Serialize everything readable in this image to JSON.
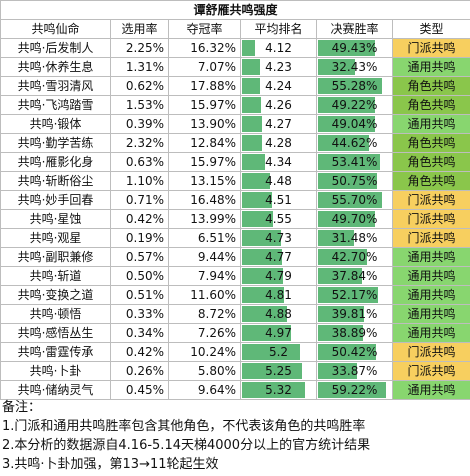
{
  "title": "谭舒雁共鸣强度",
  "headers": [
    "共鸣仙命",
    "选用率",
    "夺冠率",
    "平均排名",
    "决赛胜率",
    "类型"
  ],
  "colors": {
    "门派共鸣": "#f7cf5f",
    "通用共鸣": "#88d66f",
    "角色共鸣": "#8ac64b",
    "bar": "#5fb878"
  },
  "rows": [
    {
      "name": "共鸣·后发制人",
      "pick": "2.25%",
      "win": "16.32%",
      "rank": "4.12",
      "final": "49.43%",
      "type": "门派共鸣"
    },
    {
      "name": "共鸣·休养生息",
      "pick": "1.31%",
      "win": "7.07%",
      "rank": "4.23",
      "final": "32.43%",
      "type": "通用共鸣"
    },
    {
      "name": "共鸣·雪羽清风",
      "pick": "0.62%",
      "win": "17.88%",
      "rank": "4.24",
      "final": "55.28%",
      "type": "角色共鸣"
    },
    {
      "name": "共鸣·飞鸿踏雪",
      "pick": "1.53%",
      "win": "15.97%",
      "rank": "4.26",
      "final": "49.22%",
      "type": "角色共鸣"
    },
    {
      "name": "共鸣·锻体",
      "pick": "0.39%",
      "win": "13.90%",
      "rank": "4.27",
      "final": "49.04%",
      "type": "通用共鸣"
    },
    {
      "name": "共鸣·勤学苦练",
      "pick": "2.32%",
      "win": "12.84%",
      "rank": "4.28",
      "final": "44.62%",
      "type": "角色共鸣"
    },
    {
      "name": "共鸣·雁影化身",
      "pick": "0.63%",
      "win": "15.97%",
      "rank": "4.34",
      "final": "53.41%",
      "type": "角色共鸣"
    },
    {
      "name": "共鸣·斩断俗尘",
      "pick": "1.10%",
      "win": "13.15%",
      "rank": "4.48",
      "final": "50.75%",
      "type": "角色共鸣"
    },
    {
      "name": "共鸣·妙手回春",
      "pick": "0.71%",
      "win": "16.48%",
      "rank": "4.51",
      "final": "55.70%",
      "type": "门派共鸣"
    },
    {
      "name": "共鸣·星蚀",
      "pick": "0.42%",
      "win": "13.99%",
      "rank": "4.55",
      "final": "49.70%",
      "type": "门派共鸣"
    },
    {
      "name": "共鸣·观星",
      "pick": "0.19%",
      "win": "6.51%",
      "rank": "4.73",
      "final": "31.48%",
      "type": "门派共鸣"
    },
    {
      "name": "共鸣·副职兼修",
      "pick": "0.57%",
      "win": "9.44%",
      "rank": "4.77",
      "final": "42.70%",
      "type": "通用共鸣"
    },
    {
      "name": "共鸣·斩道",
      "pick": "0.50%",
      "win": "7.94%",
      "rank": "4.79",
      "final": "37.84%",
      "type": "通用共鸣"
    },
    {
      "name": "共鸣·变换之道",
      "pick": "0.51%",
      "win": "11.60%",
      "rank": "4.81",
      "final": "52.17%",
      "type": "通用共鸣"
    },
    {
      "name": "共鸣·顿悟",
      "pick": "0.33%",
      "win": "8.72%",
      "rank": "4.88",
      "final": "39.81%",
      "type": "通用共鸣"
    },
    {
      "name": "共鸣·感悟丛生",
      "pick": "0.34%",
      "win": "7.26%",
      "rank": "4.97",
      "final": "38.89%",
      "type": "通用共鸣"
    },
    {
      "name": "共鸣·雷霆传承",
      "pick": "0.42%",
      "win": "10.24%",
      "rank": "5.2",
      "final": "50.42%",
      "type": "门派共鸣"
    },
    {
      "name": "共鸣·卜卦",
      "pick": "0.26%",
      "win": "5.80%",
      "rank": "5.25",
      "final": "33.87%",
      "type": "门派共鸣"
    },
    {
      "name": "共鸣·储纳灵气",
      "pick": "0.45%",
      "win": "9.64%",
      "rank": "5.32",
      "final": "59.22%",
      "type": "通用共鸣"
    }
  ],
  "notes": [
    "备注：",
    "1.门派和通用共鸣胜率包含其他角色，不代表该角色的共鸣胜率",
    "2.本分析的数据源自4.16-5.14天梯4000分以上的官方统计结果",
    "3.共鸣·卜卦加强，第13→11轮起生效"
  ]
}
